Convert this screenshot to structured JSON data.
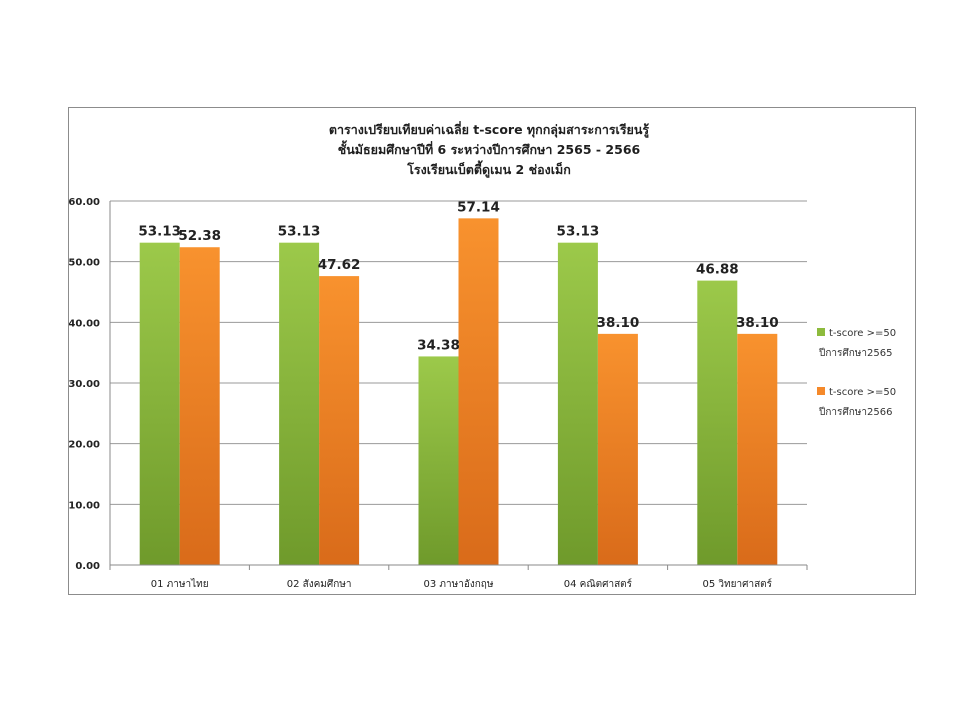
{
  "chart_data": {
    "type": "bar",
    "title_lines": [
      "ตารางเปรียบเทียบค่าเฉลี่ย t-score ทุกกลุ่มสาระการเรียนรู้",
      "ชั้นมัธยมศึกษาปีที่ 6    ระหว่างปีการศึกษา 2565 - 2566",
      "โรงเรียนเบ็ตตี้ดูเมน 2 ช่องเม็ก"
    ],
    "categories": [
      "01 ภาษาไทย",
      "02 สังคมศึกษา",
      "03 ภาษาอังกฤษ",
      "04 คณิตศาสตร์",
      "05 วิทยาศาสตร์"
    ],
    "series": [
      {
        "name_line1": "t-score >=50",
        "name_line2": "ปีการศึกษา2565",
        "color": "#8dbb3d",
        "values": [
          53.13,
          53.13,
          34.38,
          53.13,
          46.88
        ],
        "labels": [
          "53.13",
          "53.13",
          "34.38",
          "53.13",
          "46.88"
        ]
      },
      {
        "name_line1": "t-score >=50",
        "name_line2": "ปีการศึกษา2566",
        "color": "#f5892a",
        "values": [
          52.38,
          47.62,
          57.14,
          38.1,
          38.1
        ],
        "labels": [
          "52.38",
          "47.62",
          "57.14",
          "38.10",
          "38.10"
        ]
      }
    ],
    "y_ticks": [
      "0.00",
      "10.00",
      "20.00",
      "30.00",
      "40.00",
      "50.00",
      "60.00"
    ],
    "ylim": [
      0,
      60
    ],
    "grid": true,
    "legend_position": "right"
  }
}
